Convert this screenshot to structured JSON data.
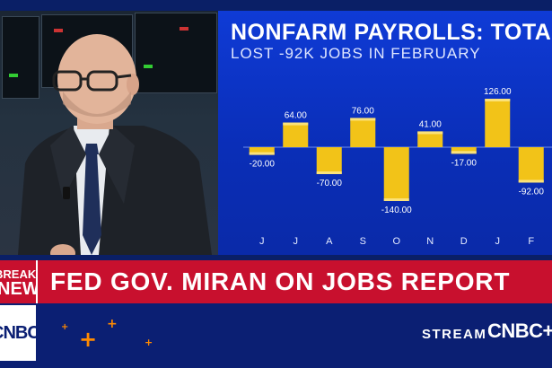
{
  "chart_data": {
    "type": "bar",
    "title": "NONFARM PAYROLLS: TOTAL",
    "subtitle": "LOST -92K JOBS IN FEBRUARY",
    "categories": [
      "J",
      "J",
      "A",
      "S",
      "O",
      "N",
      "D",
      "J",
      "F"
    ],
    "values": [
      -20.0,
      64.0,
      -70.0,
      76.0,
      -140.0,
      41.0,
      -17.0,
      126.0,
      -92.0
    ],
    "value_labels": [
      "-20.00",
      "64.00",
      "-70.00",
      "76.00",
      "-140.00",
      "41.00",
      "-17.00",
      "126.00",
      "-92.00"
    ],
    "ylim": [
      -140,
      126
    ],
    "bar_color": "#f2c318",
    "grid": false,
    "legend": "none"
  },
  "lower_third": {
    "breaking_line1": "BREAKING",
    "breaking_line2": "NEWS",
    "headline": "FED GOV. MIRAN ON JOBS REPORT",
    "stream_label": "STREAM",
    "brand": "CNBC+",
    "logo_text": "CNBC"
  },
  "colors": {
    "red": "#c8102e",
    "navy": "#0b1f73",
    "chart_bg": "#0f3bd6",
    "accent_orange": "#ff8a00"
  }
}
